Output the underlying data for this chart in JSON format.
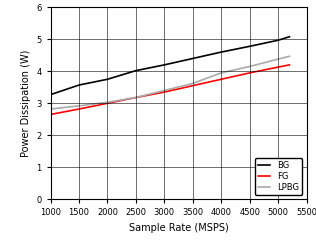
{
  "title": "",
  "xlabel": "Sample Rate (MSPS)",
  "ylabel": "Power Dissipation (W)",
  "xlim": [
    1000,
    5500
  ],
  "ylim": [
    0,
    6
  ],
  "xticks": [
    1000,
    1500,
    2000,
    2500,
    3000,
    3500,
    4000,
    4500,
    5000,
    5500
  ],
  "yticks": [
    0,
    1,
    2,
    3,
    4,
    5,
    6
  ],
  "series": [
    {
      "label": "BG",
      "color": "#000000",
      "x": [
        1000,
        1500,
        2000,
        2500,
        3000,
        3500,
        4000,
        4500,
        5000,
        5200
      ],
      "y": [
        3.27,
        3.57,
        3.75,
        4.02,
        4.2,
        4.4,
        4.6,
        4.78,
        4.97,
        5.08
      ]
    },
    {
      "label": "FG",
      "color": "#ff0000",
      "x": [
        1000,
        1500,
        2000,
        2500,
        3000,
        3500,
        4000,
        4500,
        5000,
        5200
      ],
      "y": [
        2.65,
        2.82,
        3.0,
        3.18,
        3.35,
        3.55,
        3.75,
        3.95,
        4.13,
        4.2
      ]
    },
    {
      "label": "LPBG",
      "color": "#aaaaaa",
      "x": [
        1000,
        1500,
        2000,
        2500,
        3000,
        3500,
        4000,
        4500,
        5000,
        5200
      ],
      "y": [
        2.82,
        2.92,
        3.03,
        3.18,
        3.4,
        3.62,
        3.95,
        4.15,
        4.38,
        4.47
      ]
    }
  ],
  "grid": true,
  "linewidth": 1.2,
  "legend_fontsize": 6.0,
  "tick_fontsize": 6.0,
  "label_fontsize": 7.0
}
